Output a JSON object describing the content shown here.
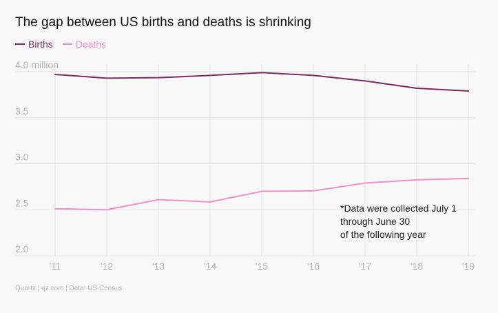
{
  "title": "The gap between US births and deaths is shrinking",
  "source": "Quartz | qz.com | Data: US Census",
  "colors": {
    "births": "#7e2a62",
    "deaths": "#ee8fc6",
    "grid": "#e4e2e2",
    "axis_text": "#b3b3b3",
    "annotation": "#222222"
  },
  "chart_data": {
    "type": "line",
    "title": "The gap between US births and deaths is shrinking",
    "categories": [
      "'11",
      "'12",
      "'13",
      "'14",
      "'15",
      "'16",
      "'17",
      "'18",
      "'19"
    ],
    "series": [
      {
        "name": "Births",
        "values": [
          3.97,
          3.93,
          3.935,
          3.96,
          3.99,
          3.96,
          3.9,
          3.82,
          3.79
        ]
      },
      {
        "name": "Deaths",
        "values": [
          2.51,
          2.5,
          2.61,
          2.585,
          2.7,
          2.705,
          2.79,
          2.825,
          2.84
        ]
      }
    ],
    "y_ticks": [
      2.0,
      2.5,
      3.0,
      3.5,
      4.0
    ],
    "y_tick_labels": [
      "2.0",
      "2.5",
      "3.0",
      "3.5",
      "4.0 million"
    ],
    "ylim": [
      2.0,
      4.0
    ],
    "xlabel": "",
    "ylabel": "",
    "grid": true,
    "legend": "top-left",
    "annotation": "*Data were collected July 1\nthrough June 30\nof the following year"
  }
}
